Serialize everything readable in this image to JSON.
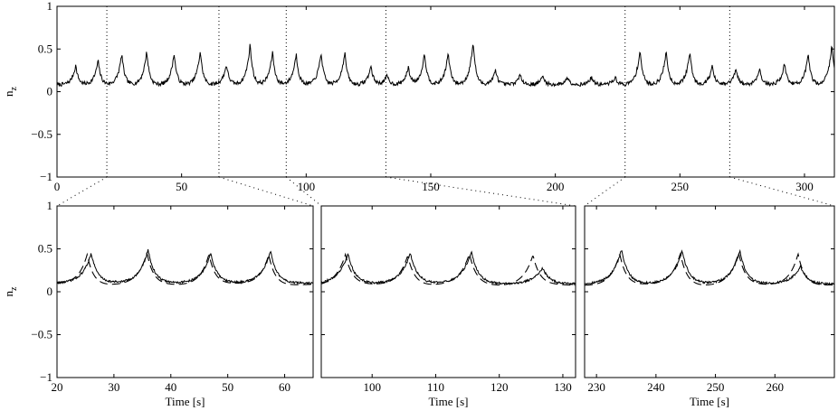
{
  "chart_data": [
    {
      "id": "overview",
      "type": "line",
      "xlim": [
        0,
        312
      ],
      "ylim": [
        -1,
        1
      ],
      "xticks": [
        0,
        50,
        100,
        150,
        200,
        250,
        300
      ],
      "yticks": [
        -1,
        -0.5,
        0,
        0.5,
        1
      ],
      "ylabel": "n_z",
      "xlabel": "",
      "grid": false,
      "baseline": 0.08,
      "peaks": [
        {
          "x": 7.5,
          "y": 0.31
        },
        {
          "x": 16.5,
          "y": 0.37
        },
        {
          "x": 26,
          "y": 0.45
        },
        {
          "x": 36,
          "y": 0.48
        },
        {
          "x": 47,
          "y": 0.45
        },
        {
          "x": 57.5,
          "y": 0.48
        },
        {
          "x": 68,
          "y": 0.32
        },
        {
          "x": 77.5,
          "y": 0.56
        },
        {
          "x": 86.5,
          "y": 0.47
        },
        {
          "x": 96,
          "y": 0.45
        },
        {
          "x": 106,
          "y": 0.46
        },
        {
          "x": 115.5,
          "y": 0.47
        },
        {
          "x": 126,
          "y": 0.3
        },
        {
          "x": 132.5,
          "y": 0.19
        },
        {
          "x": 141,
          "y": 0.28
        },
        {
          "x": 147.5,
          "y": 0.46
        },
        {
          "x": 157,
          "y": 0.46
        },
        {
          "x": 167,
          "y": 0.59
        },
        {
          "x": 176,
          "y": 0.25
        },
        {
          "x": 186,
          "y": 0.2
        },
        {
          "x": 195,
          "y": 0.18
        },
        {
          "x": 205,
          "y": 0.17
        },
        {
          "x": 214.5,
          "y": 0.17
        },
        {
          "x": 224,
          "y": 0.17
        },
        {
          "x": 234,
          "y": 0.49
        },
        {
          "x": 244.5,
          "y": 0.48
        },
        {
          "x": 254,
          "y": 0.47
        },
        {
          "x": 263,
          "y": 0.3
        },
        {
          "x": 272.5,
          "y": 0.26
        },
        {
          "x": 282,
          "y": 0.27
        },
        {
          "x": 292,
          "y": 0.33
        },
        {
          "x": 301.5,
          "y": 0.43
        },
        {
          "x": 311,
          "y": 0.55
        }
      ],
      "zoom_markers": [
        20,
        65,
        92,
        132,
        228,
        270
      ],
      "series": [
        {
          "style": "solid"
        }
      ]
    },
    {
      "id": "zoom-1",
      "type": "line",
      "xlim": [
        20,
        65
      ],
      "ylim": [
        -1,
        1
      ],
      "xticks": [
        20,
        30,
        40,
        50,
        60
      ],
      "yticks": [
        -1,
        -0.5,
        0,
        0.5,
        1
      ],
      "xlabel": "Time [s]",
      "ylabel": "n_z",
      "baseline": 0.1,
      "series": [
        {
          "style": "solid",
          "peaks": [
            {
              "x": 26,
              "y": 0.45
            },
            {
              "x": 36,
              "y": 0.49
            },
            {
              "x": 47,
              "y": 0.45
            },
            {
              "x": 57.5,
              "y": 0.48
            }
          ]
        },
        {
          "style": "dashed",
          "peaks": [
            {
              "x": 25.3,
              "y": 0.46
            },
            {
              "x": 35.8,
              "y": 0.47
            },
            {
              "x": 46.7,
              "y": 0.46
            },
            {
              "x": 57.2,
              "y": 0.46
            }
          ]
        }
      ]
    },
    {
      "id": "zoom-2",
      "type": "line",
      "xlim": [
        92,
        132
      ],
      "ylim": [
        -1,
        1
      ],
      "xticks": [
        100,
        110,
        120,
        130
      ],
      "yticks": [
        -1,
        -0.5,
        0,
        0.5,
        1
      ],
      "xlabel": "Time [s]",
      "ylabel": "",
      "baseline": 0.09,
      "series": [
        {
          "style": "solid",
          "peaks": [
            {
              "x": 96.2,
              "y": 0.44
            },
            {
              "x": 106,
              "y": 0.45
            },
            {
              "x": 115.6,
              "y": 0.47
            },
            {
              "x": 126.8,
              "y": 0.28
            }
          ]
        },
        {
          "style": "dashed",
          "peaks": [
            {
              "x": 95.8,
              "y": 0.45
            },
            {
              "x": 105.6,
              "y": 0.45
            },
            {
              "x": 115.3,
              "y": 0.46
            },
            {
              "x": 125.3,
              "y": 0.45
            }
          ]
        }
      ]
    },
    {
      "id": "zoom-3",
      "type": "line",
      "xlim": [
        228,
        270
      ],
      "ylim": [
        -1,
        1
      ],
      "xticks": [
        230,
        240,
        250,
        260
      ],
      "yticks": [
        -1,
        -0.5,
        0,
        0.5,
        1
      ],
      "xlabel": "Time [s]",
      "ylabel": "",
      "baseline": 0.09,
      "series": [
        {
          "style": "solid",
          "peaks": [
            {
              "x": 234.2,
              "y": 0.49
            },
            {
              "x": 244.4,
              "y": 0.48
            },
            {
              "x": 254.1,
              "y": 0.48
            },
            {
              "x": 264.3,
              "y": 0.3
            }
          ]
        },
        {
          "style": "dashed",
          "peaks": [
            {
              "x": 233.9,
              "y": 0.47
            },
            {
              "x": 244.1,
              "y": 0.47
            },
            {
              "x": 253.9,
              "y": 0.47
            },
            {
              "x": 263.9,
              "y": 0.47
            }
          ]
        }
      ]
    }
  ]
}
